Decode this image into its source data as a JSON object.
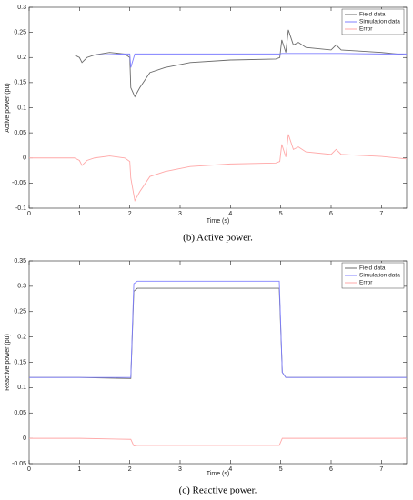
{
  "chart_data": [
    {
      "type": "line",
      "ylabel": "Active power (pu)",
      "xlabel": "Time (s)",
      "caption": "(b) Active power.",
      "x": [
        0,
        0.9,
        1.0,
        1.05,
        1.15,
        1.3,
        1.6,
        1.9,
        2.0,
        2.02,
        2.1,
        2.2,
        2.4,
        2.7,
        3.2,
        4.0,
        4.9,
        4.98,
        5.02,
        5.1,
        5.15,
        5.25,
        5.35,
        5.5,
        6.0,
        6.1,
        6.2,
        7.0,
        7.5
      ],
      "series": [
        {
          "name": "Field data",
          "color": "#6b6b6b",
          "values": [
            0.205,
            0.205,
            0.2,
            0.19,
            0.2,
            0.205,
            0.21,
            0.207,
            0.2,
            0.14,
            0.122,
            0.14,
            0.17,
            0.18,
            0.19,
            0.195,
            0.197,
            0.2,
            0.235,
            0.21,
            0.255,
            0.225,
            0.23,
            0.22,
            0.215,
            0.225,
            0.215,
            0.21,
            0.205
          ]
        },
        {
          "name": "Simulation data",
          "color": "#8080ff",
          "values": [
            0.205,
            0.205,
            0.205,
            0.205,
            0.205,
            0.205,
            0.206,
            0.207,
            0.207,
            0.18,
            0.207,
            0.207,
            0.207,
            0.207,
            0.207,
            0.207,
            0.207,
            0.207,
            0.208,
            0.208,
            0.208,
            0.208,
            0.208,
            0.208,
            0.208,
            0.208,
            0.208,
            0.207,
            0.207
          ]
        },
        {
          "name": "Error",
          "color": "#ffa8a8",
          "values": [
            0,
            0,
            -0.005,
            -0.015,
            -0.005,
            0,
            0.004,
            0,
            -0.007,
            -0.04,
            -0.085,
            -0.067,
            -0.037,
            -0.027,
            -0.017,
            -0.012,
            -0.01,
            -0.007,
            0.027,
            0.002,
            0.047,
            0.017,
            0.022,
            0.012,
            0.007,
            0.017,
            0.007,
            0.003,
            -0.002
          ]
        }
      ],
      "xlim": [
        0,
        7.5
      ],
      "xticks": [
        0,
        1,
        2,
        3,
        4,
        5,
        6,
        7
      ],
      "ylim": [
        -0.1,
        0.3
      ],
      "yticks": [
        -0.1,
        -0.05,
        0,
        0.05,
        0.1,
        0.15,
        0.2,
        0.25,
        0.3
      ],
      "grid": false,
      "legend": "upper right"
    },
    {
      "type": "line",
      "ylabel": "Reactive power (pu)",
      "xlabel": "Time (s)",
      "caption": "(c) Reactive power.",
      "x": [
        0,
        1,
        2.02,
        2.08,
        2.15,
        3,
        4,
        4.97,
        5.03,
        5.1,
        6,
        7,
        7.5
      ],
      "series": [
        {
          "name": "Field data",
          "color": "#6b6b6b",
          "values": [
            0.12,
            0.12,
            0.118,
            0.29,
            0.296,
            0.296,
            0.296,
            0.296,
            0.13,
            0.12,
            0.12,
            0.12,
            0.12
          ]
        },
        {
          "name": "Simulation data",
          "color": "#8080ff",
          "values": [
            0.12,
            0.12,
            0.12,
            0.305,
            0.31,
            0.31,
            0.31,
            0.31,
            0.13,
            0.12,
            0.12,
            0.12,
            0.12
          ]
        },
        {
          "name": "Error",
          "color": "#ffa8a8",
          "values": [
            0,
            0,
            -0.002,
            -0.015,
            -0.014,
            -0.014,
            -0.014,
            -0.014,
            0,
            0,
            0,
            0,
            0
          ]
        }
      ],
      "xlim": [
        0,
        7.5
      ],
      "xticks": [
        0,
        1,
        2,
        3,
        4,
        5,
        6,
        7
      ],
      "ylim": [
        -0.05,
        0.35
      ],
      "yticks": [
        -0.05,
        0,
        0.05,
        0.1,
        0.15,
        0.2,
        0.25,
        0.3,
        0.35
      ],
      "grid": false,
      "legend": "upper right"
    }
  ]
}
